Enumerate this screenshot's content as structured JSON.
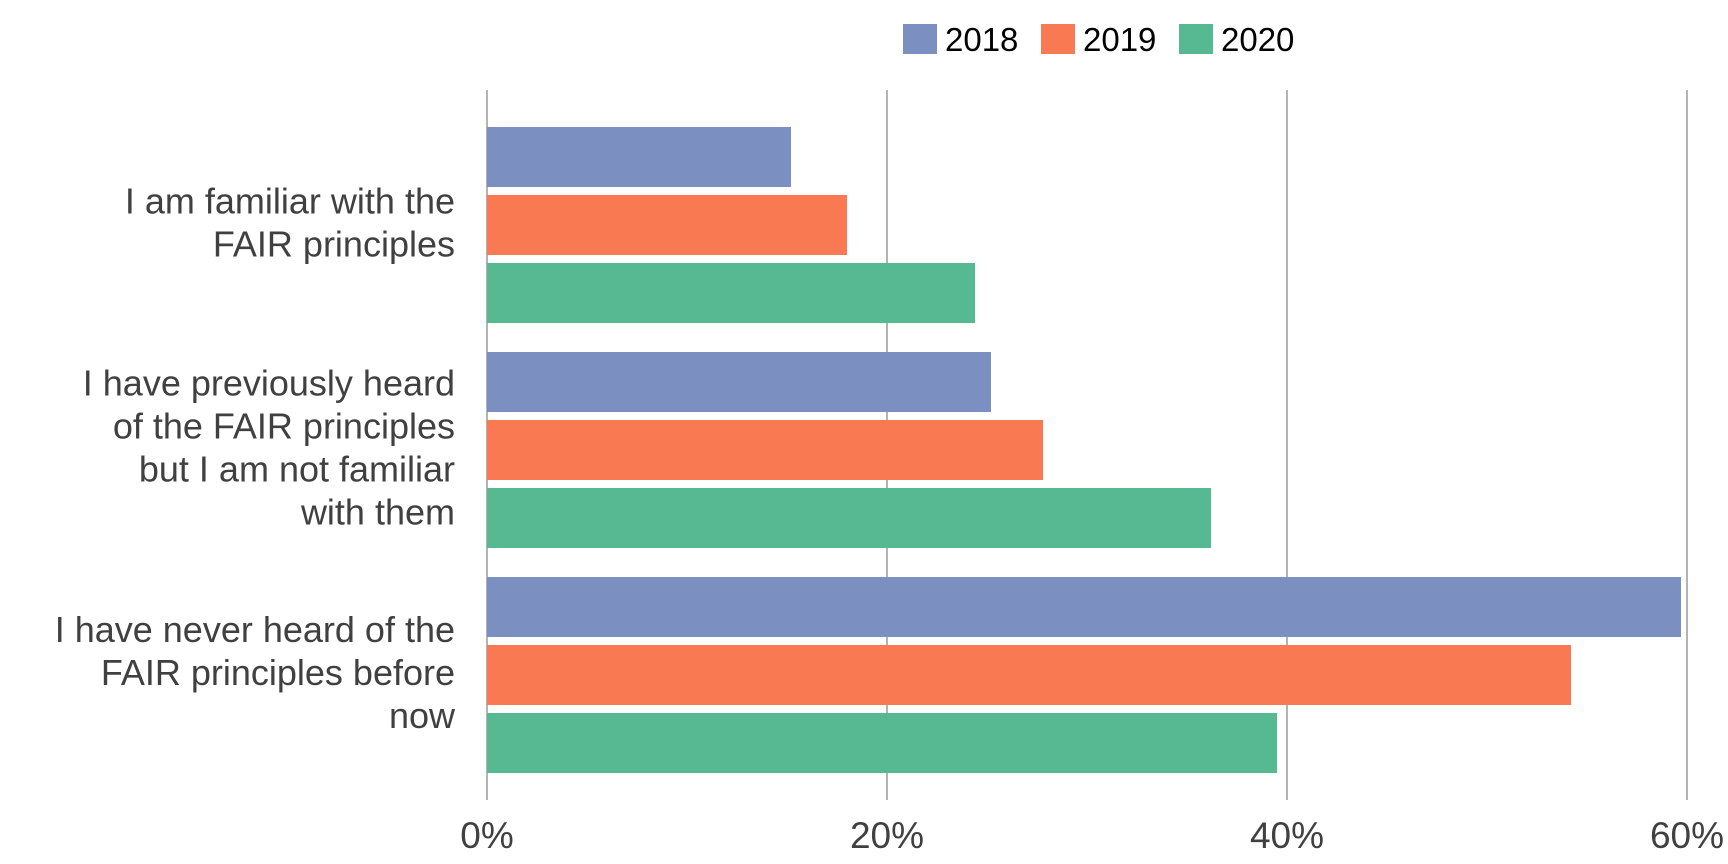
{
  "chart_data": {
    "type": "bar",
    "orientation": "horizontal",
    "categories": [
      [
        "I am familiar with the",
        "FAIR principles"
      ],
      [
        "I have previously heard",
        "of the FAIR principles",
        "but I am not familiar",
        "with them"
      ],
      [
        "I have never heard of the",
        "FAIR principles before",
        "now"
      ]
    ],
    "series": [
      {
        "name": "2018",
        "color": "#7b8fc0",
        "values": [
          15.2,
          25.2,
          59.7
        ]
      },
      {
        "name": "2019",
        "color": "#f97a52",
        "values": [
          18.0,
          27.8,
          54.2
        ]
      },
      {
        "name": "2020",
        "color": "#57b991",
        "values": [
          24.4,
          36.2,
          39.5
        ]
      }
    ],
    "x_ticks": [
      "0%",
      "20%",
      "40%",
      "60%"
    ],
    "xlim": [
      0,
      60
    ],
    "grid": true,
    "legend_position": "top"
  }
}
